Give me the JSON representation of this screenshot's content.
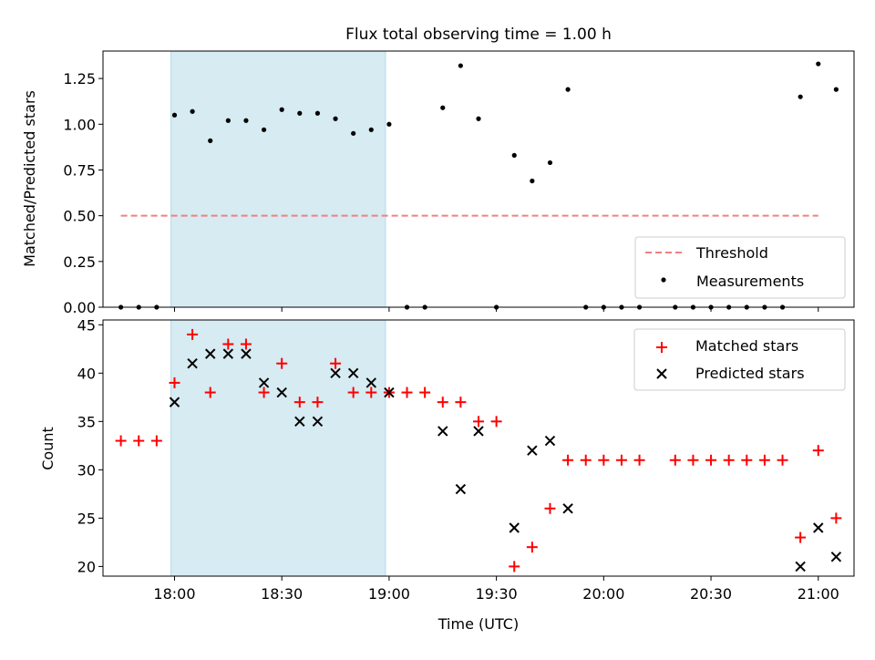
{
  "chart_data": [
    {
      "type": "scatter",
      "title": "Flux total observing time = 1.00 h",
      "xlabel": "",
      "ylabel": "Matched/Predicted stars",
      "xlim": [
        "17:40",
        "21:10"
      ],
      "ylim": [
        0,
        1.4
      ],
      "yticks": [
        "0.00",
        "0.25",
        "0.50",
        "0.75",
        "1.00",
        "1.25"
      ],
      "grid": false,
      "legend_position": "bottom-right",
      "shaded_interval": [
        "17:59",
        "18:59"
      ],
      "threshold": {
        "name": "Threshold",
        "y": 0.5,
        "x_start": "17:45",
        "x_end": "21:00",
        "color": "#f08080"
      },
      "series": [
        {
          "name": "Measurements",
          "color": "#000000",
          "points": [
            [
              "17:45",
              0
            ],
            [
              "17:50",
              0
            ],
            [
              "17:55",
              0
            ],
            [
              "18:00",
              1.05
            ],
            [
              "18:05",
              1.07
            ],
            [
              "18:10",
              0.91
            ],
            [
              "18:15",
              1.02
            ],
            [
              "18:20",
              1.02
            ],
            [
              "18:25",
              0.97
            ],
            [
              "18:30",
              1.08
            ],
            [
              "18:35",
              1.06
            ],
            [
              "18:40",
              1.06
            ],
            [
              "18:45",
              1.03
            ],
            [
              "18:50",
              0.95
            ],
            [
              "18:55",
              0.97
            ],
            [
              "19:00",
              1.0
            ],
            [
              "19:05",
              0
            ],
            [
              "19:10",
              0
            ],
            [
              "19:15",
              1.09
            ],
            [
              "19:20",
              1.32
            ],
            [
              "19:25",
              1.03
            ],
            [
              "19:30",
              0
            ],
            [
              "19:35",
              0.83
            ],
            [
              "19:40",
              0.69
            ],
            [
              "19:45",
              0.79
            ],
            [
              "19:50",
              1.19
            ],
            [
              "19:55",
              0
            ],
            [
              "20:00",
              0
            ],
            [
              "20:05",
              0
            ],
            [
              "20:10",
              0
            ],
            [
              "20:20",
              0
            ],
            [
              "20:25",
              0
            ],
            [
              "20:30",
              0
            ],
            [
              "20:35",
              0
            ],
            [
              "20:40",
              0
            ],
            [
              "20:45",
              0
            ],
            [
              "20:50",
              0
            ],
            [
              "20:55",
              1.15
            ],
            [
              "21:00",
              1.33
            ],
            [
              "21:05",
              1.19
            ]
          ]
        }
      ]
    },
    {
      "type": "scatter",
      "title": "",
      "xlabel": "Time (UTC)",
      "ylabel": "Count",
      "xlim": [
        "17:40",
        "21:10"
      ],
      "ylim": [
        19,
        45.5
      ],
      "yticks": [
        "20",
        "25",
        "30",
        "35",
        "40",
        "45"
      ],
      "xticks": [
        "18:00",
        "18:30",
        "19:00",
        "19:30",
        "20:00",
        "20:30",
        "21:00"
      ],
      "grid": false,
      "legend_position": "top-right",
      "shaded_interval": [
        "17:59",
        "18:59"
      ],
      "series": [
        {
          "name": "Matched stars",
          "marker": "plus",
          "color": "#ff0000",
          "points": [
            [
              "17:45",
              33
            ],
            [
              "17:50",
              33
            ],
            [
              "17:55",
              33
            ],
            [
              "18:00",
              39
            ],
            [
              "18:05",
              44
            ],
            [
              "18:10",
              38
            ],
            [
              "18:15",
              43
            ],
            [
              "18:20",
              43
            ],
            [
              "18:25",
              38
            ],
            [
              "18:30",
              41
            ],
            [
              "18:35",
              37
            ],
            [
              "18:40",
              37
            ],
            [
              "18:45",
              41
            ],
            [
              "18:50",
              38
            ],
            [
              "18:55",
              38
            ],
            [
              "19:00",
              38
            ],
            [
              "19:05",
              38
            ],
            [
              "19:10",
              38
            ],
            [
              "19:15",
              37
            ],
            [
              "19:20",
              37
            ],
            [
              "19:25",
              35
            ],
            [
              "19:30",
              35
            ],
            [
              "19:35",
              20
            ],
            [
              "19:40",
              22
            ],
            [
              "19:45",
              26
            ],
            [
              "19:50",
              31
            ],
            [
              "19:55",
              31
            ],
            [
              "20:00",
              31
            ],
            [
              "20:05",
              31
            ],
            [
              "20:10",
              31
            ],
            [
              "20:20",
              31
            ],
            [
              "20:25",
              31
            ],
            [
              "20:30",
              31
            ],
            [
              "20:35",
              31
            ],
            [
              "20:40",
              31
            ],
            [
              "20:45",
              31
            ],
            [
              "20:50",
              31
            ],
            [
              "20:55",
              23
            ],
            [
              "21:00",
              32
            ],
            [
              "21:05",
              25
            ]
          ]
        },
        {
          "name": "Predicted stars",
          "marker": "x",
          "color": "#000000",
          "points": [
            [
              "18:00",
              37
            ],
            [
              "18:05",
              41
            ],
            [
              "18:10",
              42
            ],
            [
              "18:15",
              42
            ],
            [
              "18:20",
              42
            ],
            [
              "18:25",
              39
            ],
            [
              "18:30",
              38
            ],
            [
              "18:35",
              35
            ],
            [
              "18:40",
              35
            ],
            [
              "18:45",
              40
            ],
            [
              "18:50",
              40
            ],
            [
              "18:55",
              39
            ],
            [
              "19:00",
              38
            ],
            [
              "19:15",
              34
            ],
            [
              "19:20",
              28
            ],
            [
              "19:25",
              34
            ],
            [
              "19:35",
              24
            ],
            [
              "19:40",
              32
            ],
            [
              "19:45",
              33
            ],
            [
              "19:50",
              26
            ],
            [
              "20:55",
              20
            ],
            [
              "21:00",
              24
            ],
            [
              "21:05",
              21
            ]
          ]
        }
      ]
    }
  ],
  "colors": {
    "shade": "#add8e6",
    "threshold": "#f08080",
    "matched": "#ff0000",
    "predicted": "#000000",
    "measurements": "#000000"
  }
}
